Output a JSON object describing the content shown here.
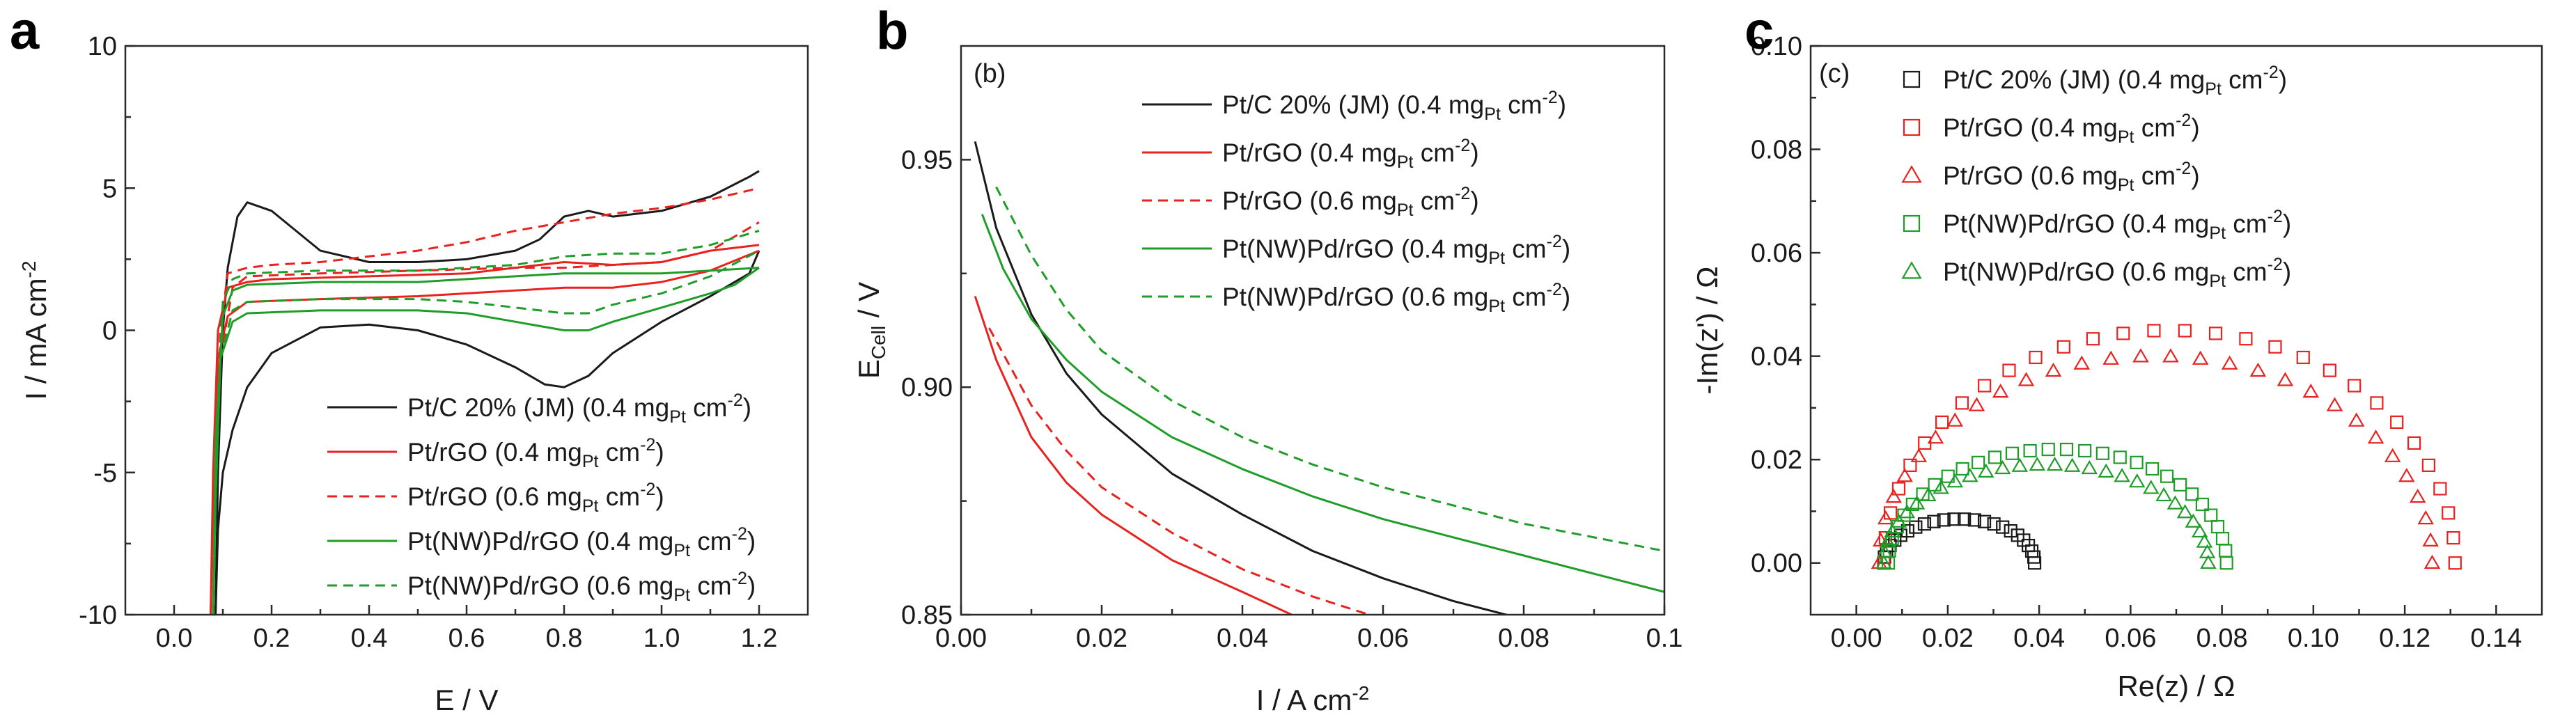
{
  "chart_data": [
    {
      "type": "line",
      "panel": "a",
      "title": "",
      "xlabel": "E / V",
      "ylabel": "I / mA cm-2",
      "xlim": [
        -0.1,
        1.3
      ],
      "ylim": [
        -10,
        10
      ],
      "xticks": [
        "0.0",
        "0.2",
        "0.4",
        "0.6",
        "0.8",
        "1.0",
        "1.2"
      ],
      "yticks": [
        "-10",
        "-5",
        "0",
        "5",
        "10"
      ],
      "legend_position": "bottom-right",
      "series": [
        {
          "name": "Pt/C 20% (JM) (0.4 mgPt cm-2)",
          "label_parts": [
            "Pt/C 20% (JM) (0.4 mg",
            "Pt",
            " cm",
            "-2",
            ")"
          ],
          "color": "#1a1a1a",
          "dash": "solid",
          "forward": [
            [
              0.085,
              -10
            ],
            [
              0.09,
              -7
            ],
            [
              0.1,
              -5
            ],
            [
              0.12,
              -3.5
            ],
            [
              0.15,
              -2
            ],
            [
              0.2,
              -0.8
            ],
            [
              0.3,
              0.1
            ],
            [
              0.4,
              0.2
            ],
            [
              0.5,
              0
            ],
            [
              0.6,
              -0.5
            ],
            [
              0.7,
              -1.3
            ],
            [
              0.76,
              -1.9
            ],
            [
              0.8,
              -2
            ],
            [
              0.85,
              -1.6
            ],
            [
              0.9,
              -0.8
            ],
            [
              1.0,
              0.3
            ],
            [
              1.1,
              1.2
            ],
            [
              1.18,
              2
            ],
            [
              1.2,
              2.8
            ]
          ],
          "reverse": [
            [
              0.085,
              -10
            ],
            [
              0.09,
              -5
            ],
            [
              0.1,
              0
            ],
            [
              0.11,
              2.2
            ],
            [
              0.13,
              4
            ],
            [
              0.15,
              4.5
            ],
            [
              0.2,
              4.2
            ],
            [
              0.25,
              3.5
            ],
            [
              0.3,
              2.8
            ],
            [
              0.4,
              2.4
            ],
            [
              0.5,
              2.4
            ],
            [
              0.6,
              2.5
            ],
            [
              0.7,
              2.8
            ],
            [
              0.75,
              3.2
            ],
            [
              0.8,
              4
            ],
            [
              0.85,
              4.2
            ],
            [
              0.9,
              4
            ],
            [
              1.0,
              4.2
            ],
            [
              1.1,
              4.7
            ],
            [
              1.18,
              5.4
            ],
            [
              1.2,
              5.6
            ]
          ]
        },
        {
          "name": "Pt/rGO (0.4 mgPt cm-2)",
          "label_parts": [
            "Pt/rGO (0.4 mg",
            "Pt",
            " cm",
            "-2",
            ")"
          ],
          "color": "#e8231f",
          "dash": "solid",
          "forward": [
            [
              0.075,
              -10
            ],
            [
              0.08,
              -6
            ],
            [
              0.09,
              -1
            ],
            [
              0.11,
              0.5
            ],
            [
              0.15,
              1
            ],
            [
              0.3,
              1.1
            ],
            [
              0.5,
              1.2
            ],
            [
              0.7,
              1.4
            ],
            [
              0.8,
              1.5
            ],
            [
              0.9,
              1.5
            ],
            [
              1.0,
              1.7
            ],
            [
              1.1,
              2.1
            ],
            [
              1.2,
              2.8
            ]
          ],
          "reverse": [
            [
              0.075,
              -10
            ],
            [
              0.08,
              -5
            ],
            [
              0.09,
              0
            ],
            [
              0.11,
              1.5
            ],
            [
              0.15,
              1.7
            ],
            [
              0.2,
              1.8
            ],
            [
              0.4,
              1.9
            ],
            [
              0.6,
              2
            ],
            [
              0.7,
              2.2
            ],
            [
              0.8,
              2.4
            ],
            [
              0.9,
              2.3
            ],
            [
              1.0,
              2.4
            ],
            [
              1.1,
              2.8
            ],
            [
              1.2,
              3
            ]
          ]
        },
        {
          "name": "Pt/rGO (0.6 mgPt cm-2)",
          "label_parts": [
            "Pt/rGO (0.6 mg",
            "Pt",
            " cm",
            "-2",
            ")"
          ],
          "color": "#e8231f",
          "dash": "dashed",
          "forward": [
            [
              0.08,
              -10
            ],
            [
              0.085,
              -6
            ],
            [
              0.095,
              -1
            ],
            [
              0.12,
              1.5
            ],
            [
              0.15,
              1.9
            ],
            [
              0.3,
              2
            ],
            [
              0.5,
              2.1
            ],
            [
              0.7,
              2.2
            ],
            [
              0.8,
              2.2
            ],
            [
              0.9,
              2.3
            ],
            [
              1.0,
              2.4
            ],
            [
              1.1,
              2.8
            ],
            [
              1.2,
              3.8
            ]
          ],
          "reverse": [
            [
              0.08,
              -10
            ],
            [
              0.085,
              -5
            ],
            [
              0.095,
              0
            ],
            [
              0.11,
              2
            ],
            [
              0.15,
              2.2
            ],
            [
              0.2,
              2.3
            ],
            [
              0.3,
              2.4
            ],
            [
              0.4,
              2.6
            ],
            [
              0.5,
              2.8
            ],
            [
              0.6,
              3.1
            ],
            [
              0.7,
              3.5
            ],
            [
              0.8,
              3.8
            ],
            [
              0.9,
              4.1
            ],
            [
              1.0,
              4.3
            ],
            [
              1.1,
              4.6
            ],
            [
              1.2,
              5
            ]
          ]
        },
        {
          "name": "Pt(NW)Pd/rGO (0.4 mgPt cm-2)",
          "label_parts": [
            "Pt(NW)Pd/rGO (0.4 mg",
            "Pt",
            " cm",
            "-2",
            ")"
          ],
          "color": "#1e9e28",
          "dash": "solid",
          "forward": [
            [
              0.08,
              -10
            ],
            [
              0.085,
              -6
            ],
            [
              0.095,
              -1
            ],
            [
              0.12,
              0.3
            ],
            [
              0.15,
              0.6
            ],
            [
              0.3,
              0.7
            ],
            [
              0.5,
              0.7
            ],
            [
              0.6,
              0.6
            ],
            [
              0.7,
              0.3
            ],
            [
              0.8,
              0
            ],
            [
              0.85,
              0
            ],
            [
              0.9,
              0.3
            ],
            [
              1.0,
              0.8
            ],
            [
              1.1,
              1.3
            ],
            [
              1.15,
              1.6
            ],
            [
              1.2,
              2.2
            ]
          ],
          "reverse": [
            [
              0.08,
              -10
            ],
            [
              0.085,
              -4
            ],
            [
              0.1,
              0.5
            ],
            [
              0.12,
              1.4
            ],
            [
              0.15,
              1.6
            ],
            [
              0.3,
              1.7
            ],
            [
              0.5,
              1.7
            ],
            [
              0.7,
              1.9
            ],
            [
              0.8,
              2
            ],
            [
              0.9,
              2
            ],
            [
              1.0,
              2
            ],
            [
              1.1,
              2.1
            ],
            [
              1.2,
              2.2
            ]
          ]
        },
        {
          "name": "Pt(NW)Pd/rGO (0.6 mgPt cm-2)",
          "label_parts": [
            "Pt(NW)Pd/rGO (0.6 mg",
            "Pt",
            " cm",
            "-2",
            ")"
          ],
          "color": "#1e9e28",
          "dash": "dashed",
          "forward": [
            [
              0.08,
              -10
            ],
            [
              0.085,
              -6
            ],
            [
              0.095,
              -1
            ],
            [
              0.12,
              0.7
            ],
            [
              0.15,
              1
            ],
            [
              0.3,
              1.1
            ],
            [
              0.5,
              1.1
            ],
            [
              0.6,
              1
            ],
            [
              0.7,
              0.8
            ],
            [
              0.8,
              0.6
            ],
            [
              0.85,
              0.6
            ],
            [
              0.9,
              0.9
            ],
            [
              1.0,
              1.3
            ],
            [
              1.1,
              1.9
            ],
            [
              1.2,
              2.8
            ]
          ],
          "reverse": [
            [
              0.08,
              -10
            ],
            [
              0.085,
              -4
            ],
            [
              0.1,
              1
            ],
            [
              0.12,
              1.8
            ],
            [
              0.15,
              2
            ],
            [
              0.3,
              2.1
            ],
            [
              0.5,
              2.1
            ],
            [
              0.7,
              2.3
            ],
            [
              0.8,
              2.6
            ],
            [
              0.9,
              2.7
            ],
            [
              1.0,
              2.7
            ],
            [
              1.1,
              3
            ],
            [
              1.2,
              3.5
            ]
          ]
        }
      ]
    },
    {
      "type": "line",
      "panel": "b",
      "inner_tag": "(b)",
      "title": "",
      "xlabel": "I / A cm-2",
      "ylabel": "ECell / V",
      "xlim": [
        0.0,
        0.1
      ],
      "ylim": [
        0.85,
        0.975
      ],
      "xticks": [
        "0.00",
        "0.02",
        "0.04",
        "0.06",
        "0.08",
        "0.1"
      ],
      "yticks": [
        "0.85",
        "0.90",
        "0.95"
      ],
      "legend_position": "top-right",
      "series": [
        {
          "name": "Pt/C 20% (JM) (0.4 mgPt cm-2)",
          "label_parts": [
            "Pt/C 20% (JM) (0.4 mg",
            "Pt",
            " cm",
            "-2",
            ")"
          ],
          "color": "#1a1a1a",
          "dash": "solid",
          "x": [
            0.002,
            0.005,
            0.01,
            0.015,
            0.02,
            0.03,
            0.04,
            0.05,
            0.06,
            0.07,
            0.08
          ],
          "y": [
            0.954,
            0.935,
            0.916,
            0.903,
            0.894,
            0.881,
            0.872,
            0.864,
            0.858,
            0.853,
            0.849
          ]
        },
        {
          "name": "Pt/rGO (0.4 mgPt cm-2)",
          "label_parts": [
            "Pt/rGO (0.4 mg",
            "Pt",
            " cm",
            "-2",
            ")"
          ],
          "color": "#e8231f",
          "dash": "solid",
          "x": [
            0.002,
            0.005,
            0.01,
            0.015,
            0.02,
            0.03,
            0.04,
            0.047
          ],
          "y": [
            0.92,
            0.906,
            0.889,
            0.879,
            0.872,
            0.862,
            0.855,
            0.85
          ]
        },
        {
          "name": "Pt/rGO (0.6 mgPt cm-2)",
          "label_parts": [
            "Pt/rGO (0.6 mg",
            "Pt",
            " cm",
            "-2",
            ")"
          ],
          "color": "#e8231f",
          "dash": "dashed",
          "x": [
            0.004,
            0.01,
            0.015,
            0.02,
            0.03,
            0.04,
            0.05,
            0.058
          ],
          "y": [
            0.913,
            0.896,
            0.886,
            0.878,
            0.868,
            0.86,
            0.854,
            0.85
          ]
        },
        {
          "name": "Pt(NW)Pd/rGO (0.4 mgPt cm-2)",
          "label_parts": [
            "Pt(NW)Pd/rGO (0.4 mg",
            "Pt",
            " cm",
            "-2",
            ")"
          ],
          "color": "#1e9e28",
          "dash": "solid",
          "x": [
            0.003,
            0.006,
            0.01,
            0.015,
            0.02,
            0.03,
            0.04,
            0.05,
            0.06,
            0.07,
            0.08,
            0.09,
            0.1
          ],
          "y": [
            0.938,
            0.926,
            0.915,
            0.906,
            0.899,
            0.889,
            0.882,
            0.876,
            0.871,
            0.867,
            0.863,
            0.859,
            0.855
          ]
        },
        {
          "name": "Pt(NW)Pd/rGO (0.6 mgPt cm-2)",
          "label_parts": [
            "Pt(NW)Pd/rGO (0.6 mg",
            "Pt",
            " cm",
            "-2",
            ")"
          ],
          "color": "#1e9e28",
          "dash": "dashed",
          "x": [
            0.005,
            0.01,
            0.015,
            0.02,
            0.03,
            0.04,
            0.05,
            0.06,
            0.07,
            0.08,
            0.09,
            0.1
          ],
          "y": [
            0.944,
            0.929,
            0.917,
            0.908,
            0.897,
            0.889,
            0.883,
            0.878,
            0.874,
            0.87,
            0.867,
            0.864
          ]
        }
      ]
    },
    {
      "type": "scatter",
      "panel": "c",
      "inner_tag": "(c)",
      "title": "",
      "xlabel": "Re(z) / Ω",
      "ylabel": "-Im(z') / Ω",
      "xlim": [
        -0.01,
        0.15
      ],
      "ylim": [
        -0.01,
        0.1
      ],
      "xticks": [
        "0.00",
        "0.02",
        "0.04",
        "0.06",
        "0.08",
        "0.10",
        "0.12",
        "0.14"
      ],
      "yticks": [
        "0.00",
        "0.02",
        "0.04",
        "0.06",
        "0.08",
        "0.10"
      ],
      "legend_position": "top-left",
      "series": [
        {
          "name": "Pt/C 20% (JM) (0.4 mgPt cm-2)",
          "label_parts": [
            "Pt/C 20% (JM) (0.4 mg",
            "Pt",
            " cm",
            "-2",
            ")"
          ],
          "color": "#1a1a1a",
          "marker": "square",
          "arc": {
            "x_start": 0.006,
            "x_end": 0.039,
            "peak": 0.0085,
            "n": 24
          }
        },
        {
          "name": "Pt/rGO (0.4 mgPt cm-2)",
          "label_parts": [
            "Pt/rGO (0.4 mg",
            "Pt",
            " cm",
            "-2",
            ")"
          ],
          "color": "#e8231f",
          "marker": "square",
          "arc": {
            "x_start": 0.006,
            "x_end": 0.131,
            "peak": 0.045,
            "n": 30
          }
        },
        {
          "name": "Pt/rGO (0.6 mgPt cm-2)",
          "label_parts": [
            "Pt/rGO (0.6 mg",
            "Pt",
            " cm",
            "-2",
            ")"
          ],
          "color": "#e8231f",
          "marker": "triangle",
          "arc": {
            "x_start": 0.005,
            "x_end": 0.126,
            "peak": 0.04,
            "n": 30
          }
        },
        {
          "name": "Pt(NW)Pd/rGO (0.4 mgPt cm-2)",
          "label_parts": [
            "Pt(NW)Pd/rGO (0.4 mg",
            "Pt",
            " cm",
            "-2",
            ")"
          ],
          "color": "#1e9e28",
          "marker": "square",
          "arc": {
            "x_start": 0.007,
            "x_end": 0.081,
            "peak": 0.022,
            "n": 30
          }
        },
        {
          "name": "Pt(NW)Pd/rGO (0.6 mgPt cm-2)",
          "label_parts": [
            "Pt(NW)Pd/rGO (0.6 mg",
            "Pt",
            " cm",
            "-2",
            ")"
          ],
          "color": "#1e9e28",
          "marker": "triangle",
          "arc": {
            "x_start": 0.006,
            "x_end": 0.077,
            "peak": 0.019,
            "n": 30
          }
        }
      ]
    }
  ]
}
